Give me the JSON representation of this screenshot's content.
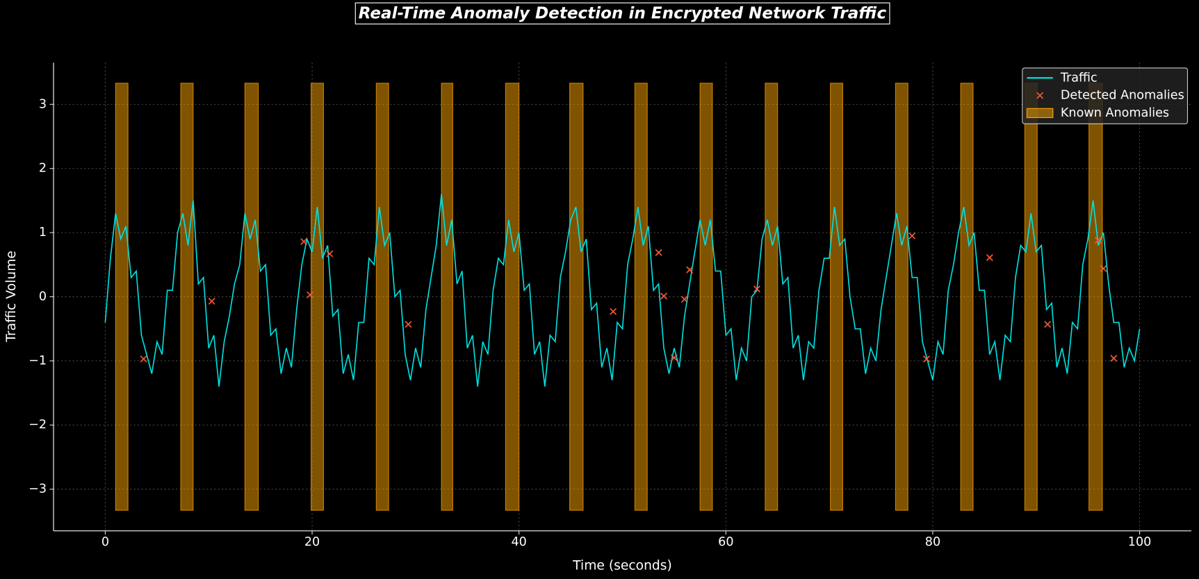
{
  "chart_data": {
    "type": "line",
    "title": "Real-Time Anomaly Detection in Encrypted Network Traffic",
    "xlabel": "Time (seconds)",
    "ylabel": "Traffic Volume",
    "xlim": [
      -5,
      105
    ],
    "ylim": [
      -3.65,
      3.65
    ],
    "xticks": [
      0,
      20,
      40,
      60,
      80,
      100
    ],
    "yticks": [
      {
        "value": -3,
        "label": "−3"
      },
      {
        "value": -2,
        "label": "−2"
      },
      {
        "value": -1,
        "label": "−1"
      },
      0,
      1,
      2,
      3
    ],
    "grid": true,
    "legend": "upper right",
    "series": [
      {
        "name": "Traffic",
        "color": "#00e0e0",
        "x": [
          0,
          0.5,
          1,
          1.5,
          2,
          2.5,
          3,
          3.5,
          4,
          4.5,
          5,
          5.5,
          6,
          6.5,
          7,
          7.5,
          8,
          8.5,
          9,
          9.5,
          10,
          10.5,
          11,
          11.5,
          12,
          12.5,
          13,
          13.5,
          14,
          14.5,
          15,
          15.5,
          16,
          16.5,
          17,
          17.5,
          18,
          18.5,
          19,
          19.5,
          20,
          20.5,
          21,
          21.5,
          22,
          22.5,
          23,
          23.5,
          24,
          24.5,
          25,
          25.5,
          26,
          26.5,
          27,
          27.5,
          28,
          28.5,
          29,
          29.5,
          30,
          30.5,
          31,
          31.5,
          32,
          32.5,
          33,
          33.5,
          34,
          34.5,
          35,
          35.5,
          36,
          36.5,
          37,
          37.5,
          38,
          38.5,
          39,
          39.5,
          40,
          40.5,
          41,
          41.5,
          42,
          42.5,
          43,
          43.5,
          44,
          44.5,
          45,
          45.5,
          46,
          46.5,
          47,
          47.5,
          48,
          48.5,
          49,
          49.5,
          50,
          50.5,
          51,
          51.5,
          52,
          52.5,
          53,
          53.5,
          54,
          54.5,
          55,
          55.5,
          56,
          56.5,
          57,
          57.5,
          58,
          58.5,
          59,
          59.5,
          60,
          60.5,
          61,
          61.5,
          62,
          62.5,
          63,
          63.5,
          64,
          64.5,
          65,
          65.5,
          66,
          66.5,
          67,
          67.5,
          68,
          68.5,
          69,
          69.5,
          70,
          70.5,
          71,
          71.5,
          72,
          72.5,
          73,
          73.5,
          74,
          74.5,
          75,
          75.5,
          76,
          76.5,
          77,
          77.5,
          78,
          78.5,
          79,
          79.5,
          80,
          80.5,
          81,
          81.5,
          82,
          82.5,
          83,
          83.5,
          84,
          84.5,
          85,
          85.5,
          86,
          86.5,
          87,
          87.5,
          88,
          88.5,
          89,
          89.5,
          90,
          90.5,
          91,
          91.5,
          92,
          92.5,
          93,
          93.5,
          94,
          94.5,
          95,
          95.5,
          96,
          96.5,
          97,
          97.5,
          98,
          98.5,
          99,
          99.5,
          100
        ],
        "values": [
          -0.4,
          0.6,
          1.3,
          0.9,
          1.1,
          0.3,
          0.4,
          -0.6,
          -0.9,
          -1.2,
          -0.7,
          -0.9,
          0.1,
          0.1,
          1.0,
          1.3,
          0.8,
          1.5,
          0.2,
          0.3,
          -0.8,
          -0.6,
          -1.4,
          -0.7,
          -0.3,
          0.2,
          0.5,
          1.3,
          0.9,
          1.2,
          0.4,
          0.5,
          -0.6,
          -0.5,
          -1.2,
          -0.8,
          -1.1,
          -0.2,
          0.5,
          0.9,
          0.7,
          1.4,
          0.6,
          0.8,
          -0.3,
          -0.2,
          -1.2,
          -0.9,
          -1.3,
          -0.4,
          -0.4,
          0.6,
          0.5,
          1.4,
          0.8,
          1.0,
          0.0,
          0.1,
          -0.9,
          -1.3,
          -0.8,
          -1.1,
          -0.2,
          0.3,
          0.8,
          1.6,
          0.8,
          1.2,
          0.2,
          0.4,
          -0.8,
          -0.6,
          -1.4,
          -0.7,
          -0.9,
          0.1,
          0.6,
          0.5,
          1.2,
          0.7,
          1.0,
          0.1,
          0.2,
          -0.9,
          -0.7,
          -1.4,
          -0.6,
          -0.7,
          0.3,
          0.7,
          1.2,
          1.4,
          0.7,
          0.9,
          -0.2,
          -0.1,
          -1.1,
          -0.8,
          -1.3,
          -0.4,
          -0.5,
          0.5,
          0.9,
          1.4,
          0.8,
          1.1,
          0.1,
          0.2,
          -0.8,
          -1.2,
          -0.8,
          -1.1,
          -0.3,
          0.2,
          0.7,
          1.2,
          0.8,
          1.2,
          0.4,
          0.4,
          -0.6,
          -0.5,
          -1.3,
          -0.8,
          -1.0,
          0.0,
          0.1,
          0.9,
          1.2,
          0.8,
          1.1,
          0.2,
          0.3,
          -0.8,
          -0.6,
          -1.3,
          -0.7,
          -0.8,
          0.1,
          0.6,
          0.6,
          1.4,
          0.8,
          0.9,
          0.0,
          -0.5,
          -0.5,
          -1.2,
          -0.8,
          -1.0,
          -0.2,
          0.3,
          0.8,
          1.3,
          0.8,
          1.1,
          0.3,
          0.3,
          -0.7,
          -1.0,
          -1.3,
          -0.7,
          -0.9,
          0.1,
          0.5,
          1.0,
          1.4,
          0.8,
          1.0,
          0.1,
          0.1,
          -0.9,
          -0.7,
          -1.3,
          -0.6,
          -0.7,
          0.3,
          0.8,
          0.7,
          1.3,
          0.7,
          0.8,
          -0.2,
          -0.1,
          -1.1,
          -0.8,
          -1.2,
          -0.4,
          -0.5,
          0.5,
          0.9,
          1.5,
          0.8,
          1.0,
          0.2,
          -0.4,
          -0.4,
          -1.1,
          -0.8,
          -1.0,
          -0.5
        ]
      },
      {
        "name": "Detected Anomalies",
        "color": "#ff5a36",
        "marker": "x",
        "x": [
          3.7,
          10.3,
          19.2,
          19.8,
          21.7,
          29.3,
          49.1,
          53.5,
          54,
          55,
          56,
          56.5,
          63,
          78,
          79.4,
          85.5,
          91.1,
          96,
          96.5,
          97.5
        ],
        "values": [
          -0.97,
          -0.07,
          0.86,
          0.03,
          0.67,
          -0.43,
          -0.23,
          0.69,
          0.01,
          -0.95,
          -0.04,
          0.42,
          0.12,
          0.95,
          -0.97,
          0.61,
          -0.43,
          0.88,
          0.44,
          -0.96
        ]
      }
    ],
    "spans": {
      "name": "Known Anomalies",
      "color": "#ffa500",
      "y": [
        -3.33,
        3.33
      ],
      "ranges": [
        [
          1.0,
          2.2
        ],
        [
          7.3,
          8.5
        ],
        [
          13.5,
          14.8
        ],
        [
          19.9,
          21.1
        ],
        [
          26.2,
          27.4
        ],
        [
          32.5,
          33.6
        ],
        [
          38.7,
          40.0
        ],
        [
          44.9,
          46.2
        ],
        [
          51.2,
          52.4
        ],
        [
          57.5,
          58.7
        ],
        [
          63.8,
          65.0
        ],
        [
          70.1,
          71.3
        ],
        [
          76.4,
          77.6
        ],
        [
          82.7,
          83.9
        ],
        [
          88.9,
          90.1
        ],
        [
          95.1,
          96.4
        ]
      ]
    }
  }
}
